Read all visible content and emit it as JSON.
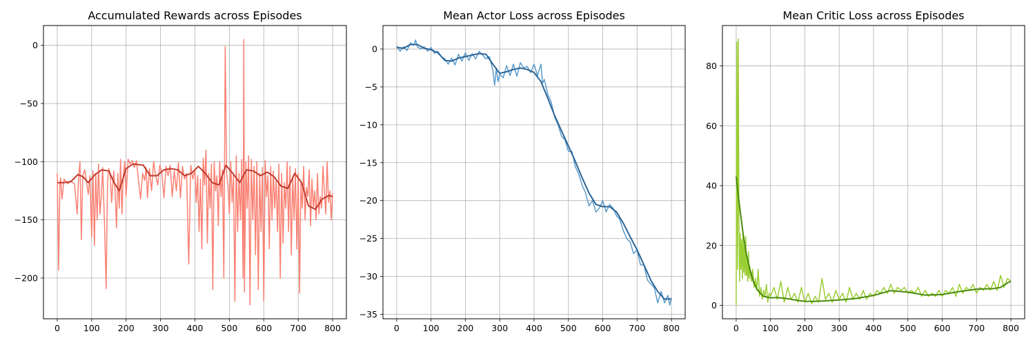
{
  "colors": {
    "background": "#ffffff",
    "grid": "#b0b0b0",
    "axes": "#000000"
  },
  "chart_data": [
    {
      "type": "line",
      "title": "Accumulated Rewards across Episodes",
      "xlabel": "",
      "ylabel": "",
      "xlim": [
        -40,
        840
      ],
      "ylim": [
        -235,
        17
      ],
      "x_ticks": [
        0,
        100,
        200,
        300,
        400,
        500,
        600,
        700,
        800
      ],
      "y_ticks": [
        0,
        -50,
        -100,
        -150,
        -200
      ],
      "grid": true,
      "raw_color": "#fa8072",
      "smooth_color": "#c0392b",
      "smooth": {
        "x": [
          0,
          20,
          40,
          60,
          75,
          90,
          110,
          130,
          150,
          165,
          180,
          200,
          220,
          250,
          270,
          290,
          310,
          330,
          350,
          370,
          390,
          410,
          430,
          450,
          470,
          490,
          510,
          530,
          550,
          570,
          590,
          610,
          630,
          650,
          670,
          690,
          710,
          730,
          750,
          770,
          790,
          800
        ],
        "y": [
          -118,
          -118,
          -117,
          -111,
          -113,
          -118,
          -111,
          -107,
          -108,
          -118,
          -125,
          -106,
          -102,
          -103,
          -112,
          -112,
          -107,
          -106,
          -107,
          -112,
          -110,
          -104,
          -110,
          -118,
          -120,
          -103,
          -110,
          -118,
          -107,
          -108,
          -112,
          -109,
          -113,
          -121,
          -123,
          -110,
          -118,
          -138,
          -141,
          -132,
          -129,
          -130
        ]
      },
      "raw": {
        "x": [
          0,
          4,
          8,
          10,
          14,
          20,
          30,
          40,
          50,
          58,
          62,
          66,
          70,
          74,
          80,
          85,
          90,
          95,
          100,
          104,
          108,
          112,
          116,
          120,
          124,
          128,
          132,
          138,
          142,
          146,
          150,
          154,
          158,
          164,
          168,
          172,
          176,
          180,
          184,
          188,
          192,
          196,
          200,
          206,
          212,
          218,
          224,
          230,
          236,
          242,
          248,
          254,
          258,
          262,
          268,
          274,
          280,
          286,
          292,
          298,
          304,
          310,
          316,
          322,
          328,
          334,
          340,
          346,
          352,
          358,
          364,
          370,
          376,
          382,
          388,
          394,
          400,
          404,
          408,
          412,
          416,
          420,
          424,
          428,
          432,
          436,
          440,
          444,
          448,
          452,
          456,
          460,
          464,
          468,
          472,
          476,
          480,
          484,
          488,
          492,
          496,
          500,
          504,
          508,
          512,
          516,
          520,
          524,
          528,
          532,
          536,
          540,
          542,
          544,
          548,
          552,
          556,
          560,
          564,
          568,
          572,
          576,
          580,
          584,
          588,
          592,
          596,
          600,
          604,
          608,
          612,
          616,
          620,
          624,
          628,
          632,
          636,
          640,
          644,
          648,
          652,
          656,
          660,
          664,
          668,
          672,
          676,
          680,
          684,
          688,
          692,
          696,
          700,
          704,
          708,
          712,
          716,
          720,
          724,
          728,
          732,
          736,
          740,
          744,
          748,
          752,
          756,
          760,
          764,
          768,
          772,
          776,
          780,
          784,
          788,
          792,
          796,
          800
        ],
        "y": [
          -110,
          -193,
          -118,
          -114,
          -132,
          -115,
          -119,
          -117,
          -119,
          -145,
          -113,
          -100,
          -167,
          -112,
          -107,
          -118,
          -128,
          -112,
          -165,
          -108,
          -172,
          -110,
          -150,
          -102,
          -145,
          -130,
          -105,
          -160,
          -209,
          -117,
          -106,
          -112,
          -135,
          -108,
          -125,
          -157,
          -110,
          -140,
          -98,
          -145,
          -112,
          -100,
          -130,
          -98,
          -102,
          -99,
          -105,
          -99,
          -116,
          -132,
          -110,
          -116,
          -105,
          -131,
          -106,
          -125,
          -100,
          -112,
          -120,
          -103,
          -110,
          -131,
          -104,
          -112,
          -103,
          -130,
          -108,
          -125,
          -101,
          -131,
          -104,
          -115,
          -110,
          -188,
          -103,
          -115,
          -107,
          -135,
          -112,
          -160,
          -115,
          -175,
          -97,
          -120,
          -90,
          -170,
          -110,
          -140,
          -102,
          -210,
          -100,
          -125,
          -112,
          -155,
          -100,
          -130,
          -107,
          -200,
          -1,
          -110,
          -120,
          -145,
          -100,
          -135,
          -112,
          -220,
          -95,
          -160,
          -110,
          -150,
          -98,
          -200,
          5,
          -212,
          -100,
          -140,
          -95,
          -223,
          -98,
          -150,
          -104,
          -180,
          -100,
          -210,
          -110,
          -160,
          -105,
          -220,
          -99,
          -130,
          -112,
          -175,
          -104,
          -150,
          -108,
          -140,
          -116,
          -160,
          -102,
          -200,
          -110,
          -170,
          -118,
          -140,
          -100,
          -160,
          -104,
          -180,
          -112,
          -150,
          -106,
          -175,
          -110,
          -213,
          -118,
          -140,
          -104,
          -150,
          -122,
          -130,
          -107,
          -155,
          -115,
          -140,
          -125,
          -150,
          -110,
          -145,
          -130,
          -140,
          -104,
          -125,
          -145,
          -100,
          -135,
          -125,
          -150,
          -127
        ]
      }
    },
    {
      "type": "line",
      "title": "Mean Actor Loss across Episodes",
      "xlabel": "",
      "ylabel": "",
      "xlim": [
        -40,
        840
      ],
      "ylim": [
        -35.6,
        3.1
      ],
      "x_ticks": [
        0,
        100,
        200,
        300,
        400,
        500,
        600,
        700,
        800
      ],
      "y_ticks": [
        0,
        -5,
        -10,
        -15,
        -20,
        -25,
        -30,
        -35
      ],
      "grid": true,
      "raw_color": "#5b9ac9",
      "smooth_color": "#2a6496",
      "smooth": {
        "x": [
          0,
          20,
          40,
          60,
          80,
          100,
          120,
          140,
          160,
          180,
          200,
          220,
          240,
          260,
          280,
          300,
          320,
          340,
          360,
          380,
          400,
          420,
          440,
          460,
          480,
          500,
          520,
          540,
          560,
          580,
          600,
          620,
          640,
          660,
          680,
          700,
          720,
          740,
          760,
          780,
          800
        ],
        "y": [
          0.2,
          0.1,
          0.6,
          0.6,
          0.1,
          -0.1,
          -0.5,
          -1.5,
          -1.6,
          -1.2,
          -1.0,
          -0.8,
          -0.6,
          -0.7,
          -2.0,
          -3.2,
          -3.0,
          -2.7,
          -2.5,
          -2.7,
          -3.1,
          -4.3,
          -6.5,
          -8.8,
          -10.8,
          -12.8,
          -14.8,
          -17.0,
          -19.0,
          -20.5,
          -20.8,
          -20.8,
          -21.5,
          -23.0,
          -24.8,
          -26.5,
          -28.5,
          -30.5,
          -32.0,
          -33.0,
          -33.0
        ]
      },
      "raw": {
        "x": [
          0,
          10,
          20,
          30,
          40,
          50,
          55,
          60,
          70,
          80,
          90,
          100,
          110,
          120,
          130,
          140,
          150,
          160,
          170,
          180,
          190,
          200,
          210,
          220,
          230,
          240,
          250,
          260,
          270,
          280,
          285,
          290,
          295,
          300,
          310,
          320,
          330,
          340,
          350,
          360,
          370,
          380,
          390,
          400,
          410,
          420,
          425,
          430,
          440,
          450,
          460,
          470,
          480,
          490,
          500,
          510,
          520,
          530,
          540,
          550,
          560,
          570,
          580,
          590,
          600,
          610,
          620,
          630,
          640,
          650,
          660,
          670,
          680,
          690,
          700,
          710,
          720,
          730,
          740,
          750,
          760,
          770,
          780,
          790,
          795,
          800
        ],
        "y": [
          0.4,
          -0.3,
          0.3,
          -0.2,
          0.8,
          0.5,
          1.2,
          0.3,
          0.0,
          0.3,
          -0.3,
          0.2,
          -0.6,
          -0.3,
          -1.0,
          -1.3,
          -2.0,
          -1.2,
          -2.1,
          -0.7,
          -1.6,
          -0.5,
          -1.5,
          -0.6,
          -1.3,
          -0.3,
          -0.8,
          -1.3,
          -1.0,
          -2.8,
          -4.8,
          -2.5,
          -4.3,
          -3.3,
          -3.8,
          -2.2,
          -3.5,
          -2.0,
          -3.6,
          -1.8,
          -2.5,
          -2.3,
          -3.1,
          -2.0,
          -3.5,
          -2.0,
          -4.5,
          -4.0,
          -6.0,
          -7.0,
          -9.0,
          -10.0,
          -11.5,
          -12.0,
          -13.5,
          -13.5,
          -15.5,
          -16.5,
          -18.0,
          -19.0,
          -20.7,
          -20.0,
          -21.5,
          -21.0,
          -20.0,
          -21.5,
          -20.5,
          -21.0,
          -22.0,
          -22.5,
          -24.0,
          -25.0,
          -25.5,
          -27.0,
          -26.5,
          -28.5,
          -28.5,
          -30.5,
          -31.0,
          -31.5,
          -33.5,
          -32.0,
          -33.5,
          -32.5,
          -33.8,
          -32.8
        ]
      }
    },
    {
      "type": "line",
      "title": "Mean Critic Loss across Episodes",
      "xlabel": "",
      "ylabel": "",
      "xlim": [
        -40,
        840
      ],
      "ylim": [
        -4.5,
        93.5
      ],
      "x_ticks": [
        0,
        100,
        200,
        300,
        400,
        500,
        600,
        700,
        800
      ],
      "y_ticks": [
        0,
        20,
        40,
        60,
        80
      ],
      "grid": true,
      "raw_color": "#9acd32",
      "smooth_color": "#4a8a0a",
      "smooth": {
        "x": [
          0,
          10,
          20,
          30,
          40,
          50,
          60,
          70,
          80,
          100,
          120,
          150,
          180,
          200,
          230,
          260,
          300,
          350,
          400,
          450,
          500,
          550,
          600,
          650,
          700,
          750,
          770,
          790,
          800
        ],
        "y": [
          43,
          33,
          24,
          17,
          12,
          8,
          5.5,
          4,
          3,
          2.5,
          2.6,
          2.2,
          1.6,
          1.3,
          1.3,
          1.5,
          1.8,
          2.3,
          3.3,
          4.9,
          4.4,
          3.4,
          3.6,
          4.6,
          5.4,
          5.6,
          6.0,
          7.5,
          8.0
        ]
      },
      "raw": {
        "x": [
          0,
          2,
          4,
          6,
          8,
          10,
          12,
          14,
          16,
          18,
          20,
          22,
          24,
          26,
          28,
          30,
          32,
          34,
          36,
          38,
          40,
          44,
          48,
          52,
          56,
          60,
          64,
          68,
          72,
          76,
          80,
          84,
          88,
          92,
          96,
          100,
          110,
          120,
          130,
          140,
          150,
          160,
          170,
          180,
          190,
          200,
          210,
          220,
          230,
          240,
          250,
          260,
          270,
          280,
          290,
          300,
          310,
          320,
          330,
          340,
          350,
          360,
          370,
          380,
          390,
          400,
          410,
          420,
          430,
          440,
          450,
          460,
          470,
          480,
          490,
          500,
          510,
          520,
          530,
          540,
          550,
          560,
          570,
          580,
          590,
          600,
          610,
          620,
          630,
          640,
          650,
          660,
          670,
          680,
          690,
          700,
          710,
          720,
          730,
          740,
          750,
          760,
          770,
          780,
          790,
          800
        ],
        "y": [
          0,
          88,
          12,
          89,
          30,
          8,
          24,
          12,
          22,
          9,
          24,
          11,
          20,
          10,
          23,
          10,
          15,
          8,
          18,
          9,
          13,
          8,
          12,
          6,
          9,
          5,
          12,
          3,
          6,
          2,
          5,
          3,
          7,
          1,
          4,
          3,
          6,
          2,
          8,
          1,
          6,
          2,
          4,
          1,
          6,
          1,
          4,
          0.5,
          3,
          1,
          9,
          2,
          4,
          1,
          5,
          2,
          4,
          1,
          6,
          2,
          4,
          2,
          5,
          2,
          4,
          3,
          5,
          4,
          6,
          4,
          7,
          4,
          6,
          5,
          6,
          4,
          5,
          4,
          6,
          3,
          5,
          3,
          4,
          3,
          5,
          3,
          5,
          4,
          6,
          3,
          7,
          4,
          6,
          5,
          7,
          4,
          6,
          5,
          7,
          5,
          8,
          5,
          10,
          6,
          9,
          8
        ]
      }
    }
  ]
}
